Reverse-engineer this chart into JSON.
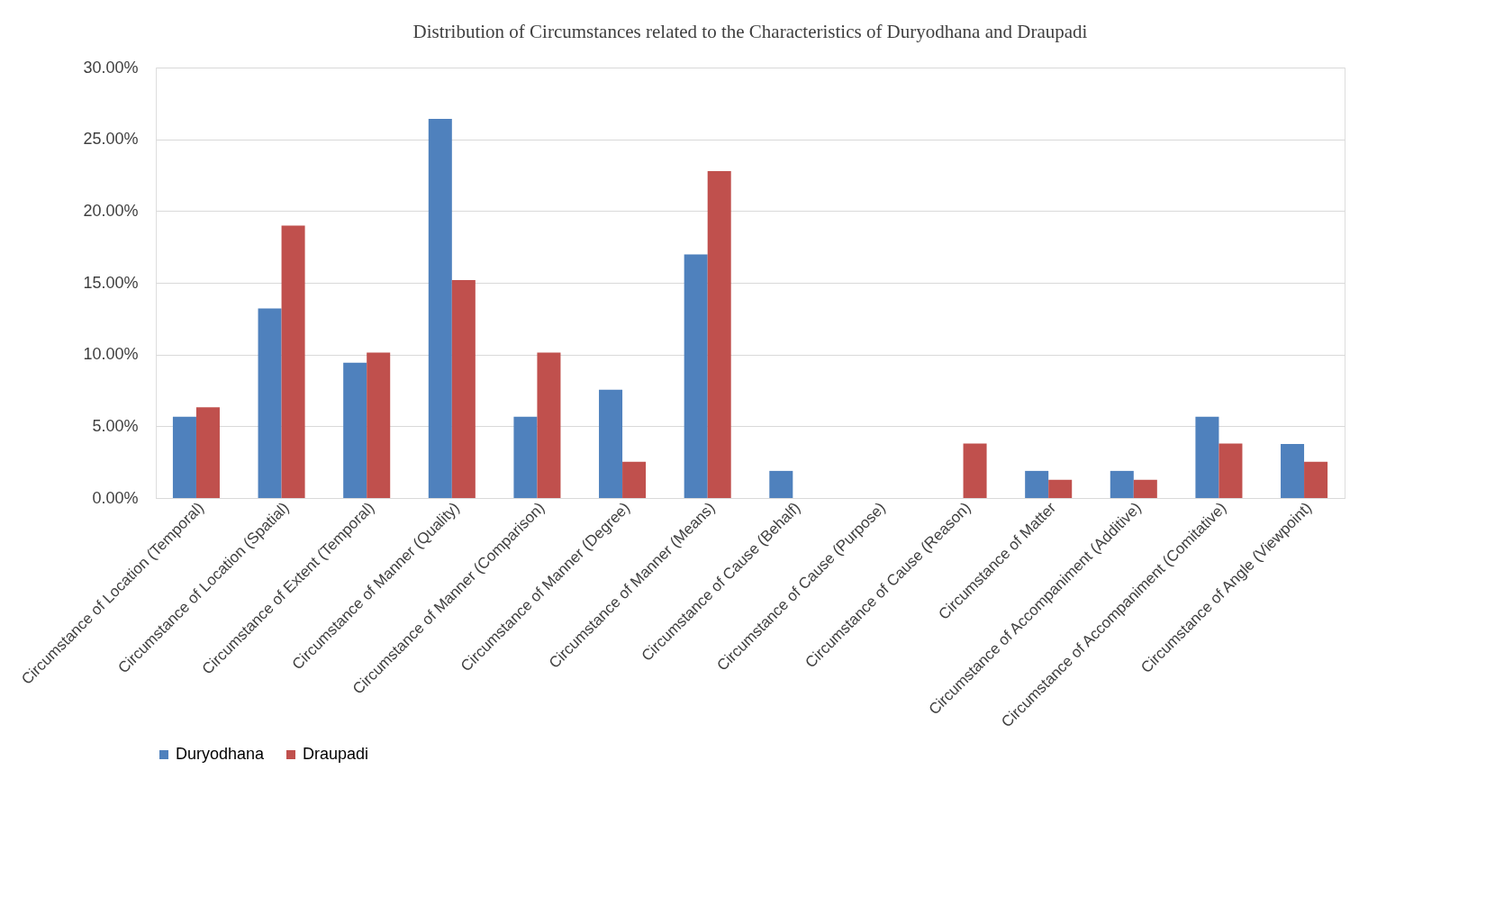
{
  "chart_data": {
    "type": "bar",
    "title": "Distribution of Circumstances related to the Characteristics of Duryodhana and Draupadi",
    "categories": [
      "Circumstance of Location (Temporal)",
      "Circumstance of Location (Spatial)",
      "Circumstance of Extent (Temporal)",
      "Circumstance of Manner (Quality)",
      "Circumstance of Manner (Comparison)",
      "Circumstance of Manner (Degree)",
      "Circumstance of Manner (Means)",
      "Circumstance of Cause (Behalf)",
      "Circumstance of Cause (Purpose)",
      "Circumstance of Cause (Reason)",
      "Circumstance of Matter",
      "Circumstance of Accompaniment (Additive)",
      "Circumstance of Accompaniment (Comitative)",
      "Circumstance of Angle (Viewpoint)"
    ],
    "series": [
      {
        "name": "Duryodhana",
        "color": "#4f81bd",
        "values": [
          5.66,
          13.21,
          9.43,
          26.42,
          5.66,
          7.55,
          16.98,
          1.89,
          0,
          0,
          1.89,
          1.89,
          5.66,
          3.77
        ]
      },
      {
        "name": "Draupadi",
        "color": "#c0504d",
        "values": [
          6.33,
          18.99,
          10.13,
          15.19,
          10.13,
          2.53,
          22.78,
          0,
          0,
          3.8,
          1.27,
          1.27,
          3.8,
          2.53
        ]
      }
    ],
    "ylim": [
      0,
      30
    ],
    "yticks": [
      {
        "value": 0,
        "label": "0.00%"
      },
      {
        "value": 5,
        "label": "5.00%"
      },
      {
        "value": 10,
        "label": "10.00%"
      },
      {
        "value": 15,
        "label": "15.00%"
      },
      {
        "value": 20,
        "label": "20.00%"
      },
      {
        "value": 25,
        "label": "25.00%"
      },
      {
        "value": 30,
        "label": "30.00%"
      }
    ],
    "grid": "y",
    "legend": "bottom"
  }
}
